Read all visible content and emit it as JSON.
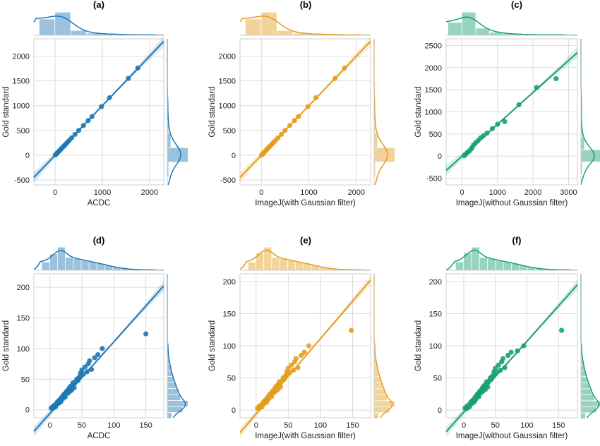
{
  "chart_data": [
    {
      "panel": "(a)",
      "type": "scatter",
      "color": "#1f77b4",
      "xlabel": "ACDC",
      "ylabel": "Gold standard",
      "xlim": [
        -450,
        2300
      ],
      "ylim": [
        -600,
        2350
      ],
      "xticks": [
        0,
        1000,
        2000
      ],
      "yticks": [
        -500,
        0,
        500,
        1000,
        1500,
        2000
      ],
      "fit": {
        "slope": 1.0,
        "intercept": 0
      },
      "x": [
        5,
        20,
        40,
        60,
        80,
        100,
        120,
        150,
        180,
        200,
        230,
        260,
        300,
        350,
        420,
        500,
        600,
        700,
        780,
        980,
        1150,
        1550,
        1750
      ],
      "y": [
        5,
        20,
        40,
        60,
        80,
        100,
        120,
        150,
        180,
        200,
        230,
        260,
        300,
        350,
        420,
        500,
        600,
        700,
        780,
        980,
        1160,
        1550,
        1760
      ],
      "top_hist": [
        0.7,
        1.0,
        0.2,
        0.08,
        0.05,
        0.03,
        0.02
      ],
      "right_hist": [
        0.05,
        0.95,
        0.15,
        0.05,
        0.02
      ]
    },
    {
      "panel": "(b)",
      "type": "scatter",
      "color": "#e39d1f",
      "xlabel": "ImageJ(with Gaussian filter)",
      "ylabel": "Gold standard",
      "xlim": [
        -450,
        2300
      ],
      "ylim": [
        -600,
        2350
      ],
      "xticks": [
        0,
        1000,
        2000
      ],
      "yticks": [
        -500,
        0,
        500,
        1000,
        1500,
        2000
      ],
      "fit": {
        "slope": 1.0,
        "intercept": 0
      },
      "x": [
        5,
        20,
        40,
        60,
        80,
        100,
        120,
        150,
        180,
        200,
        230,
        260,
        300,
        350,
        420,
        500,
        600,
        700,
        780,
        980,
        1150,
        1550,
        1750
      ],
      "y": [
        5,
        20,
        40,
        60,
        80,
        100,
        120,
        150,
        180,
        200,
        230,
        260,
        300,
        350,
        420,
        500,
        600,
        700,
        780,
        980,
        1160,
        1550,
        1760
      ],
      "top_hist": [
        0.7,
        1.0,
        0.2,
        0.08,
        0.05,
        0.03,
        0.02
      ],
      "right_hist": [
        0.05,
        0.95,
        0.15,
        0.05,
        0.02
      ]
    },
    {
      "panel": "(c)",
      "type": "scatter",
      "color": "#1a9e77",
      "xlabel": "ImageJ(without Gaussian filter)",
      "ylabel": "Gold standard",
      "xlim": [
        -450,
        3250
      ],
      "ylim": [
        -650,
        2650
      ],
      "xticks": [
        0,
        1000,
        2000,
        3000
      ],
      "yticks": [
        -500,
        0,
        500,
        1000,
        1500,
        2000,
        2500
      ],
      "fit": {
        "slope": 0.72,
        "intercept": 0
      },
      "x": [
        60,
        100,
        150,
        200,
        250,
        280,
        320,
        380,
        450,
        520,
        600,
        700,
        850,
        1000,
        1200,
        1600,
        2100,
        2650
      ],
      "y": [
        10,
        40,
        80,
        110,
        160,
        190,
        250,
        300,
        350,
        410,
        460,
        520,
        620,
        720,
        780,
        1160,
        1550,
        1750
      ],
      "top_hist": [
        0.55,
        1.0,
        0.3,
        0.12,
        0.06,
        0.04,
        0.02,
        0.02
      ],
      "right_hist": [
        0.05,
        0.95,
        0.15,
        0.05,
        0.02,
        0.02
      ]
    },
    {
      "panel": "(d)",
      "type": "scatter",
      "color": "#1f77b4",
      "xlabel": "ACDC",
      "ylabel": "Gold standard",
      "xlim": [
        -25,
        178
      ],
      "ylim": [
        -13,
        222
      ],
      "xticks": [
        0,
        50,
        100,
        150
      ],
      "yticks": [
        0,
        50,
        100,
        150,
        200
      ],
      "fit": {
        "slope": 1.17,
        "intercept": -6
      },
      "x": [
        2,
        4,
        5,
        6,
        8,
        9,
        10,
        11,
        12,
        13,
        14,
        15,
        16,
        17,
        18,
        20,
        21,
        22,
        23,
        24,
        25,
        26,
        28,
        29,
        30,
        31,
        32,
        34,
        35,
        36,
        38,
        40,
        42,
        44,
        45,
        47,
        48,
        50,
        52,
        55,
        58,
        60,
        62,
        65,
        70,
        75,
        82,
        150
      ],
      "y": [
        3,
        2,
        6,
        4,
        8,
        5,
        9,
        12,
        10,
        14,
        11,
        16,
        15,
        13,
        20,
        18,
        24,
        22,
        26,
        21,
        28,
        30,
        27,
        33,
        35,
        30,
        38,
        32,
        40,
        44,
        36,
        45,
        50,
        48,
        52,
        55,
        60,
        65,
        58,
        70,
        62,
        75,
        80,
        66,
        85,
        90,
        100,
        124
      ],
      "top_hist": [
        0.35,
        0.7,
        1.0,
        0.55,
        0.5,
        0.42,
        0.35,
        0.28,
        0.2,
        0.12,
        0.07,
        0.04,
        0.03,
        0.02
      ],
      "right_hist": [
        0.2,
        0.7,
        0.95,
        0.6,
        0.5,
        0.4,
        0.3,
        0.22,
        0.15,
        0.1,
        0.05,
        0.03
      ]
    },
    {
      "panel": "(e)",
      "type": "scatter",
      "color": "#e39d1f",
      "xlabel": "ImageJ(with Gaussian filter)",
      "ylabel": "Gold standard",
      "xlim": [
        -25,
        178
      ],
      "ylim": [
        -12,
        212
      ],
      "xticks": [
        0,
        50,
        100,
        150
      ],
      "yticks": [
        0,
        50,
        100,
        150,
        200
      ],
      "fit": {
        "slope": 1.17,
        "intercept": -6
      },
      "x": [
        2,
        4,
        5,
        6,
        8,
        9,
        10,
        11,
        12,
        13,
        14,
        15,
        16,
        17,
        18,
        20,
        21,
        22,
        23,
        24,
        25,
        26,
        28,
        29,
        30,
        31,
        32,
        34,
        35,
        36,
        38,
        40,
        42,
        44,
        45,
        47,
        48,
        50,
        52,
        55,
        58,
        60,
        62,
        65,
        70,
        75,
        82,
        148
      ],
      "y": [
        3,
        2,
        6,
        4,
        8,
        5,
        9,
        12,
        10,
        14,
        11,
        16,
        15,
        13,
        20,
        18,
        24,
        22,
        26,
        21,
        28,
        30,
        27,
        33,
        35,
        30,
        38,
        32,
        40,
        44,
        36,
        45,
        50,
        48,
        52,
        55,
        60,
        65,
        58,
        70,
        62,
        75,
        80,
        66,
        85,
        90,
        100,
        124
      ],
      "top_hist": [
        0.35,
        0.75,
        1.0,
        0.55,
        0.5,
        0.42,
        0.35,
        0.28,
        0.2,
        0.12,
        0.07,
        0.04,
        0.03,
        0.02
      ],
      "right_hist": [
        0.2,
        0.7,
        0.95,
        0.6,
        0.5,
        0.4,
        0.3,
        0.22,
        0.15,
        0.1,
        0.05,
        0.03
      ]
    },
    {
      "panel": "(f)",
      "type": "scatter",
      "color": "#1a9e77",
      "xlabel": "ImageJ(without Gaussian filter)",
      "ylabel": "Gold standard",
      "xlim": [
        -28,
        180
      ],
      "ylim": [
        -12,
        212
      ],
      "xticks": [
        0,
        50,
        100,
        150
      ],
      "yticks": [
        0,
        50,
        100,
        150,
        200
      ],
      "fit": {
        "slope": 1.1,
        "intercept": -3
      },
      "x": [
        2,
        4,
        5,
        6,
        8,
        9,
        10,
        11,
        12,
        13,
        14,
        15,
        16,
        17,
        18,
        20,
        21,
        22,
        23,
        24,
        25,
        26,
        28,
        29,
        30,
        31,
        32,
        34,
        35,
        36,
        38,
        40,
        42,
        44,
        45,
        47,
        48,
        50,
        52,
        55,
        58,
        60,
        62,
        65,
        70,
        75,
        85,
        95,
        155
      ],
      "y": [
        3,
        2,
        6,
        4,
        8,
        5,
        9,
        12,
        10,
        14,
        11,
        16,
        15,
        13,
        20,
        18,
        24,
        22,
        26,
        21,
        28,
        30,
        27,
        33,
        35,
        30,
        38,
        32,
        40,
        44,
        36,
        45,
        50,
        48,
        52,
        55,
        60,
        65,
        58,
        70,
        62,
        75,
        80,
        66,
        85,
        90,
        92,
        100,
        124
      ],
      "top_hist": [
        0.35,
        0.75,
        1.0,
        0.55,
        0.5,
        0.42,
        0.35,
        0.28,
        0.2,
        0.12,
        0.07,
        0.04,
        0.03,
        0.02
      ],
      "right_hist": [
        0.2,
        0.7,
        0.95,
        0.6,
        0.5,
        0.4,
        0.3,
        0.22,
        0.15,
        0.1,
        0.05,
        0.03
      ]
    }
  ]
}
